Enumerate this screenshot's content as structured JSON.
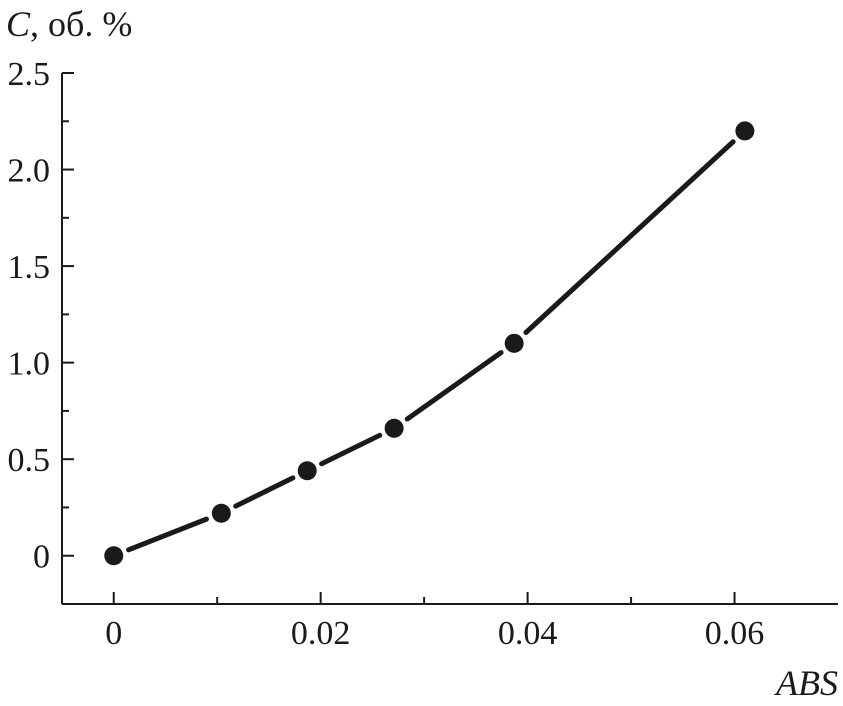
{
  "chart_data": {
    "type": "line",
    "title": "",
    "xlabel": "ABS",
    "ylabel_var": "C",
    "ylabel_unit": ", об. %",
    "xlim": [
      -0.005,
      0.07
    ],
    "ylim": [
      -0.25,
      2.5
    ],
    "x_ticks": [
      0,
      0.02,
      0.04,
      0.06
    ],
    "x_tick_labels": [
      "0",
      "0.02",
      "0.04",
      "0.06"
    ],
    "x_minor_ticks": [
      0.01,
      0.03,
      0.05
    ],
    "y_ticks": [
      0,
      0.5,
      1.0,
      1.5,
      2.0,
      2.5
    ],
    "y_tick_labels": [
      "0",
      "0.5",
      "1.0",
      "1.5",
      "2.0",
      "2.5"
    ],
    "y_minor_ticks": [
      0.25,
      0.75,
      1.25,
      1.75,
      2.25
    ],
    "grid": false,
    "series": [
      {
        "x": [
          0,
          0.0104,
          0.0187,
          0.0271,
          0.0387,
          0.061
        ],
        "y": [
          0,
          0.22,
          0.44,
          0.66,
          1.1,
          2.2
        ]
      }
    ],
    "colors": {
      "line": "#1a1a1a",
      "marker": "#1a1a1a"
    }
  }
}
